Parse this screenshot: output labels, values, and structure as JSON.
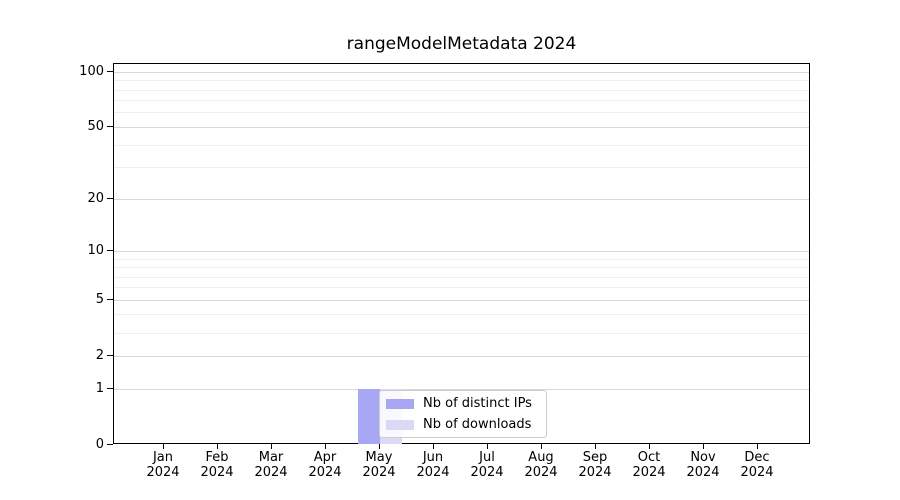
{
  "chart_data": {
    "type": "bar",
    "title": "rangeModelMetadata 2024",
    "categories": [
      "Jan",
      "Feb",
      "Mar",
      "Apr",
      "May",
      "Jun",
      "Jul",
      "Aug",
      "Sep",
      "Oct",
      "Nov",
      "Dec"
    ],
    "year_label": "2024",
    "series": [
      {
        "name": "Nb of distinct IPs",
        "color": "#a7a7f3",
        "values": [
          0,
          0,
          0,
          0,
          1,
          0,
          0,
          0,
          0,
          0,
          0,
          0
        ]
      },
      {
        "name": "Nb of downloads",
        "color": "#dadaf8",
        "values": [
          0,
          0,
          0,
          0,
          1,
          0,
          0,
          0,
          0,
          0,
          0,
          0
        ]
      }
    ],
    "xlabel": "",
    "ylabel": "",
    "y_axis": {
      "scale": "log1p",
      "ticks": [
        0,
        1,
        2,
        5,
        10,
        20,
        50,
        100
      ],
      "minor_gridlines": [
        3,
        4,
        6,
        7,
        8,
        9,
        30,
        40,
        60,
        70,
        80,
        90
      ],
      "ylim": [
        0,
        110
      ]
    },
    "legend": {
      "position": "inside lower-center",
      "entries": [
        "Nb of distinct IPs",
        "Nb of downloads"
      ]
    },
    "colors": {
      "grid_major": "#d9d9d9",
      "grid_minor": "#efefef",
      "spine": "#000000",
      "text": "#000000",
      "background": "#ffffff",
      "legend_border": "#cccccc"
    }
  }
}
